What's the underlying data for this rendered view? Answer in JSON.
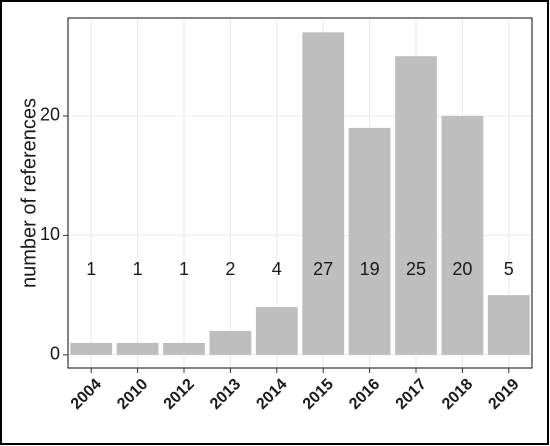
{
  "chart_data": {
    "type": "bar",
    "y_label": "number of references",
    "categories": [
      "2004",
      "2010",
      "2012",
      "2013",
      "2014",
      "2015",
      "2016",
      "2017",
      "2018",
      "2019"
    ],
    "values": [
      1,
      1,
      1,
      2,
      4,
      27,
      19,
      25,
      20,
      5
    ],
    "color": "#bebebe",
    "ylim": [
      -1.1,
      28.2
    ],
    "yticks": [
      0,
      10,
      20
    ],
    "grid": true
  }
}
